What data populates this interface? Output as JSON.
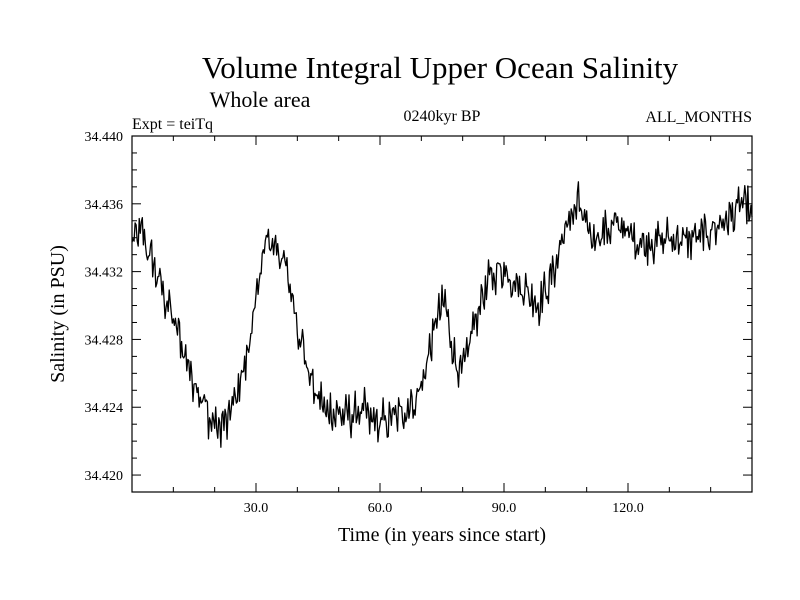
{
  "chart_data": {
    "type": "line",
    "title": "Volume Integral Upper Ocean Salinity",
    "subtitle": "Whole area",
    "expt_label": "Expt = teiTq",
    "period_label": "0240kyr BP",
    "months_label": "ALL_MONTHS",
    "xlabel": "Time (in years since start)",
    "ylabel": "Salinity (in PSU)",
    "xlim": [
      0,
      150
    ],
    "ylim": [
      34.419,
      34.44
    ],
    "x_ticks": [
      30,
      60,
      90,
      120
    ],
    "x_tick_labels": [
      "30.0",
      "60.0",
      "90.0",
      "120.0"
    ],
    "y_ticks": [
      34.42,
      34.424,
      34.428,
      34.432,
      34.436,
      34.44
    ],
    "y_tick_labels": [
      "34.420",
      "34.424",
      "34.428",
      "34.432",
      "34.436",
      "34.440"
    ],
    "x_minor_step": 10,
    "y_minor_step": 0.001,
    "grid": false,
    "series": [
      {
        "name": "salinity",
        "color": "#000000",
        "step": 0.25,
        "anchors": [
          [
            0,
            34.4335
          ],
          [
            2,
            34.4345
          ],
          [
            5,
            34.4325
          ],
          [
            8,
            34.4305
          ],
          [
            11,
            34.4285
          ],
          [
            14,
            34.4262
          ],
          [
            17,
            34.4245
          ],
          [
            19,
            34.4232
          ],
          [
            21,
            34.4228
          ],
          [
            23,
            34.4232
          ],
          [
            25,
            34.4245
          ],
          [
            27,
            34.4262
          ],
          [
            29,
            34.4285
          ],
          [
            30.5,
            34.4312
          ],
          [
            32,
            34.4335
          ],
          [
            34,
            34.4338
          ],
          [
            36,
            34.433
          ],
          [
            38,
            34.4315
          ],
          [
            40,
            34.429
          ],
          [
            42,
            34.4268
          ],
          [
            44,
            34.425
          ],
          [
            47,
            34.4238
          ],
          [
            50,
            34.4236
          ],
          [
            53,
            34.4235
          ],
          [
            56,
            34.4238
          ],
          [
            58,
            34.4232
          ],
          [
            60,
            34.423
          ],
          [
            63,
            34.4234
          ],
          [
            66,
            34.4238
          ],
          [
            69,
            34.4245
          ],
          [
            71,
            34.4262
          ],
          [
            73,
            34.4285
          ],
          [
            75,
            34.4302
          ],
          [
            76,
            34.4298
          ],
          [
            78,
            34.4268
          ],
          [
            80,
            34.426
          ],
          [
            82,
            34.4282
          ],
          [
            84,
            34.43
          ],
          [
            87,
            34.4318
          ],
          [
            90,
            34.4322
          ],
          [
            93,
            34.4312
          ],
          [
            96,
            34.4308
          ],
          [
            98,
            34.43
          ],
          [
            100,
            34.4308
          ],
          [
            102,
            34.432
          ],
          [
            104,
            34.4338
          ],
          [
            106,
            34.4352
          ],
          [
            108,
            34.436
          ],
          [
            110,
            34.4345
          ],
          [
            112,
            34.434
          ],
          [
            115,
            34.4345
          ],
          [
            118,
            34.4348
          ],
          [
            121,
            34.434
          ],
          [
            124,
            34.4336
          ],
          [
            127,
            34.4338
          ],
          [
            130,
            34.434
          ],
          [
            133,
            34.4338
          ],
          [
            136,
            34.434
          ],
          [
            139,
            34.4342
          ],
          [
            142,
            34.4348
          ],
          [
            145,
            34.4352
          ],
          [
            148,
            34.4362
          ],
          [
            150,
            34.435
          ]
        ],
        "noise_amplitude": 0.0011
      }
    ]
  }
}
